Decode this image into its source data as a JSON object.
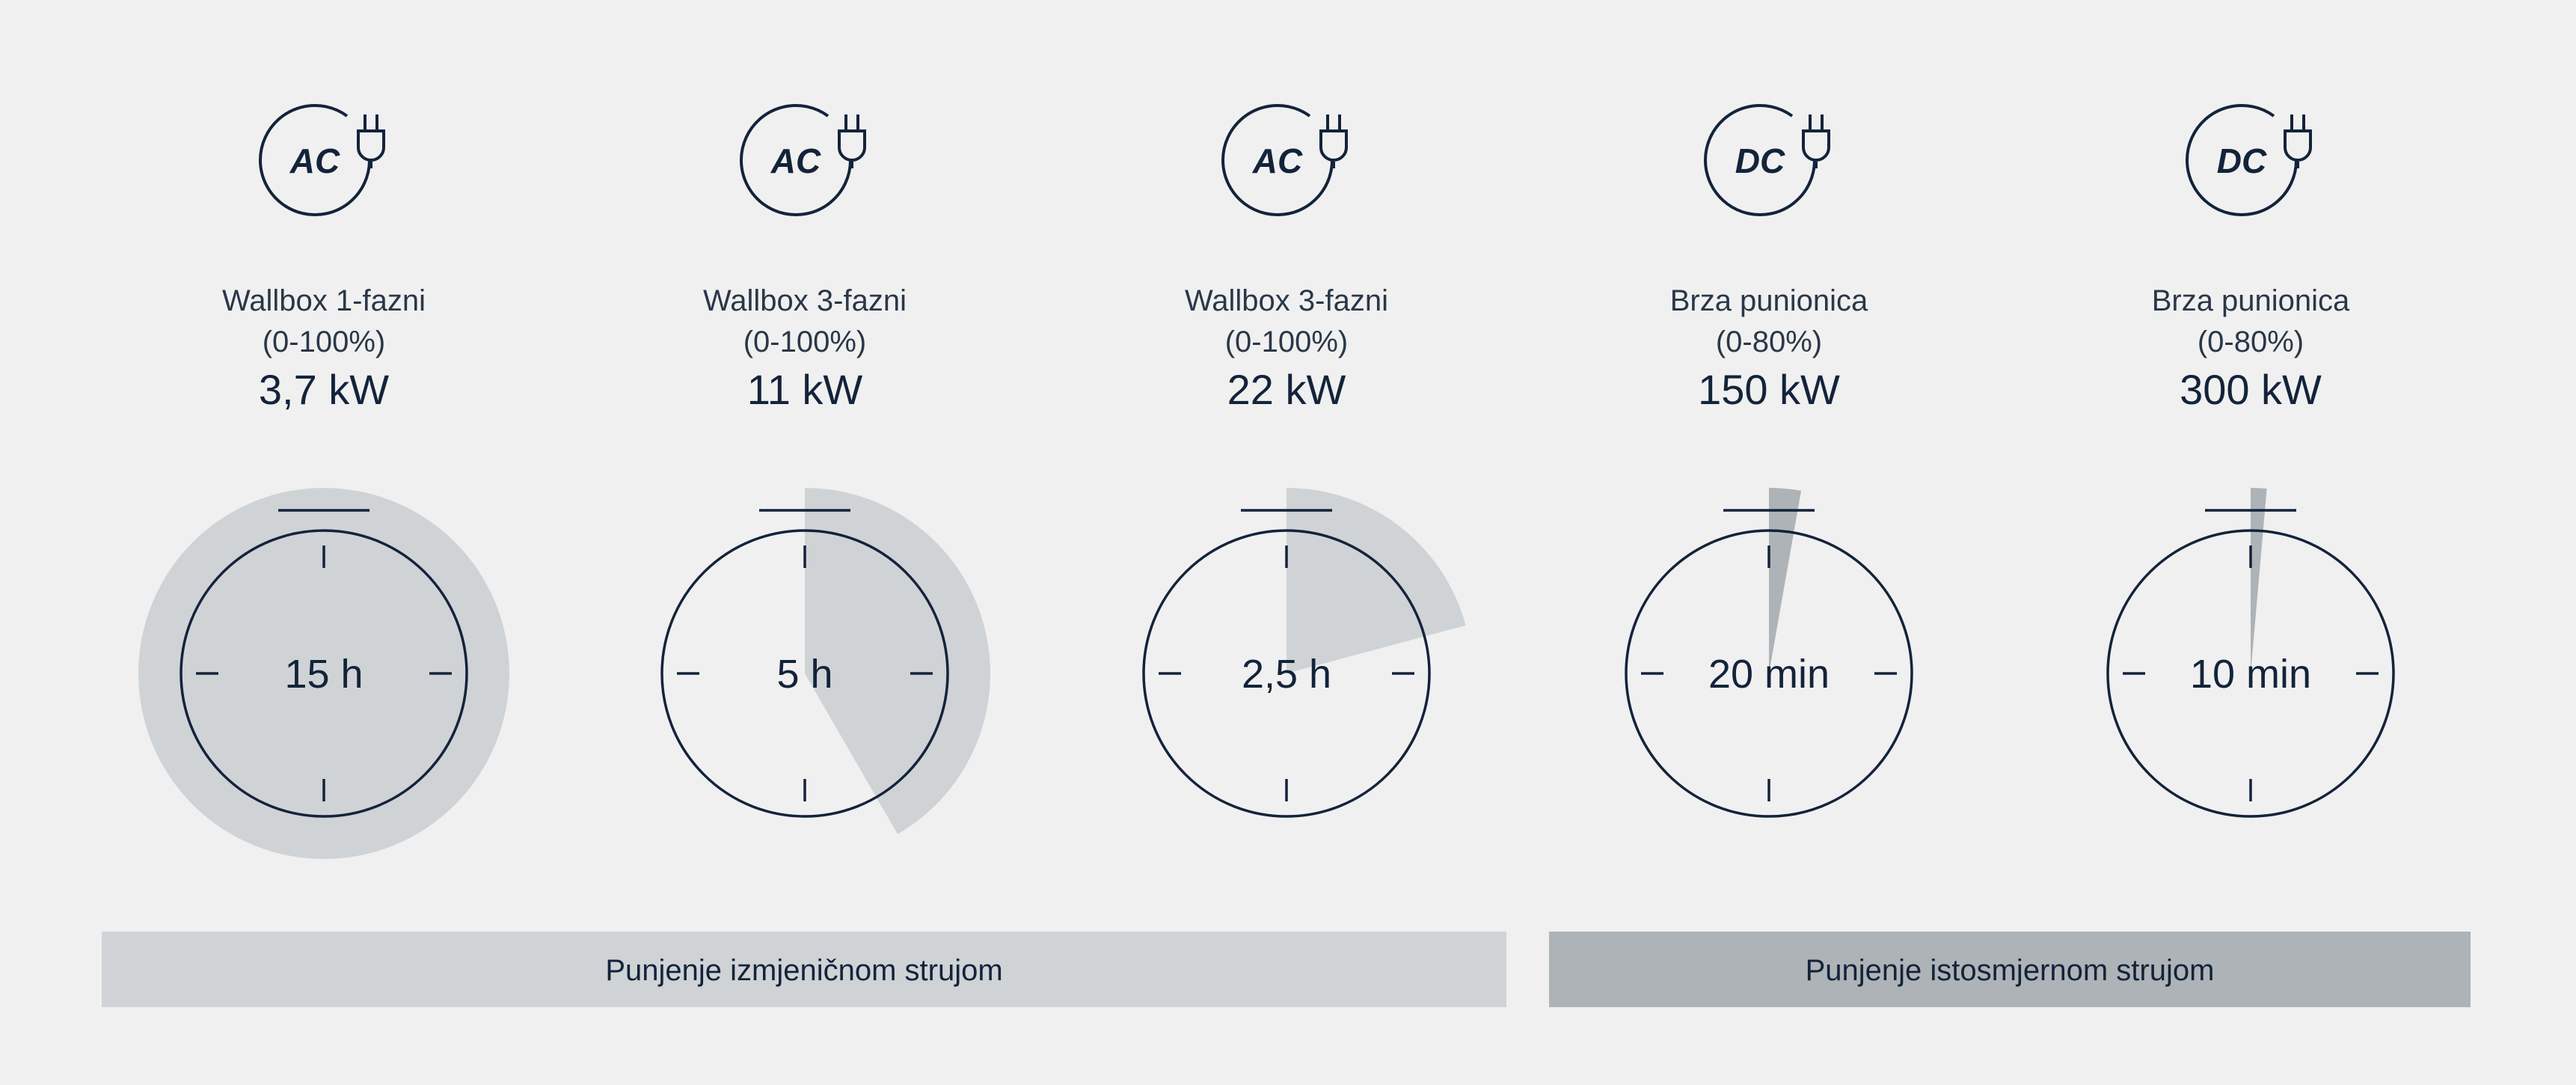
{
  "colors": {
    "background": "#f0f0f0",
    "ink": "#13233a",
    "wedge_ac": "#cfd3d6",
    "wedge_dc": "#aeb3b7",
    "bar_ac": "#cfd3d6",
    "bar_dc": "#aeb3b7"
  },
  "dial_hours": 12,
  "chargers": [
    {
      "type": "AC",
      "icon": "plug-icon",
      "name": "Wallbox 1-fazni",
      "range": "(0-100%)",
      "power": "3,7 kW",
      "time_label": "15 h",
      "time_hours": 15
    },
    {
      "type": "AC",
      "icon": "plug-icon",
      "name": "Wallbox 3-fazni",
      "range": "(0-100%)",
      "power": "11 kW",
      "time_label": "5 h",
      "time_hours": 5
    },
    {
      "type": "AC",
      "icon": "plug-icon",
      "name": "Wallbox 3-fazni",
      "range": "(0-100%)",
      "power": "22 kW",
      "time_label": "2,5 h",
      "time_hours": 2.5
    },
    {
      "type": "DC",
      "icon": "plug-icon",
      "name": "Brza punionica",
      "range": "(0-80%)",
      "power": "150 kW",
      "time_label": "20 min",
      "time_hours": 0.3333
    },
    {
      "type": "DC",
      "icon": "plug-icon",
      "name": "Brza punionica",
      "range": "(0-80%)",
      "power": "300 kW",
      "time_label": "10 min",
      "time_hours": 0.1667
    }
  ],
  "groups": {
    "ac_label": "Punjenje izmjeničnom strujom",
    "dc_label": "Punjenje istosmjernom strujom"
  }
}
